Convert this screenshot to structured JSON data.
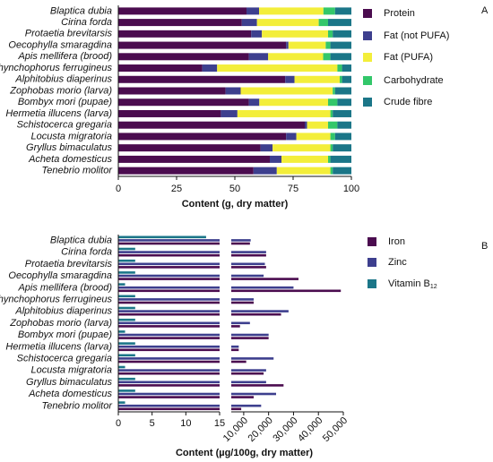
{
  "chart_data": [
    {
      "type": "bar",
      "orientation": "horizontal",
      "stacked": true,
      "panel": "A",
      "xlabel": "Content (g, dry matter)",
      "categories": [
        "Blaptica dubia",
        "Cirina forda",
        "Protaetia brevitarsis",
        "Oecophylla smaragdina",
        "Apis mellifera (brood)",
        "Rhynchophorus ferrugineus",
        "Alphitobius diaperinus",
        "Zophobas morio (larva)",
        "Bombyx mori (pupae)",
        "Hermetia illucens (larva)",
        "Schistocerca gregaria",
        "Locusta migratoria",
        "Gryllus bimaculatus",
        "Acheta domesticus",
        "Tenebrio molitor"
      ],
      "series": [
        {
          "name": "Protein",
          "color": "#4b0c4f",
          "values": [
            55,
            53,
            57,
            72,
            56,
            36,
            71.6,
            46,
            56,
            44,
            80,
            72,
            61,
            65,
            58
          ]
        },
        {
          "name": "Fat (not PUFA)",
          "color": "#3d3f8e",
          "values": [
            5.4,
            6.5,
            4.6,
            1,
            8.3,
            6.4,
            4,
            6.5,
            4.5,
            7.1,
            1,
            4.4,
            5.2,
            5,
            10
          ]
        },
        {
          "name": "Fat (PUFA)",
          "color": "#f3ee3a",
          "values": [
            27.6,
            26.5,
            28.4,
            16,
            23.6,
            51.6,
            19.4,
            39.5,
            29.5,
            39.9,
            9,
            14.6,
            24.8,
            20,
            23
          ]
        },
        {
          "name": "Carbohydrate",
          "color": "#33c76a",
          "values": [
            5,
            4,
            2,
            2,
            3.1,
            2,
            1,
            1,
            4,
            1,
            4,
            2,
            1,
            1,
            1
          ]
        },
        {
          "name": "Crude fibre",
          "color": "#1b7688",
          "values": [
            7,
            10,
            8,
            9,
            9,
            4,
            4,
            7,
            6,
            8,
            6,
            7,
            8,
            9,
            8
          ]
        }
      ],
      "xlim": [
        0,
        100
      ],
      "xticks": [
        0,
        25,
        50,
        75,
        100
      ]
    },
    {
      "type": "bar",
      "orientation": "horizontal",
      "stacked": false,
      "panel": "B",
      "xlabel": "Content (µg/100g, dry matter)",
      "categories": [
        "Blaptica dubia",
        "Cirina forda",
        "Protaetia brevitarsis",
        "Oecophylla smaragdina",
        "Apis mellifera (brood)",
        "Rhynchophorus ferrugineus",
        "Alphitobius diaperinus",
        "Zophobas morio (larva)",
        "Bombyx mori (pupae)",
        "Hermetia illucens (larva)",
        "Schistocerca gregaria",
        "Locusta migratoria",
        "Gryllus bimaculatus",
        "Acheta domesticus",
        "Tenebrio molitor"
      ],
      "series": [
        {
          "name": "Iron",
          "color": "#4b0c4f",
          "values": [
            12500,
            19000,
            19000,
            32000,
            49000,
            14000,
            25000,
            8500,
            20000,
            8000,
            11000,
            18000,
            26000,
            14000,
            9000
          ]
        },
        {
          "name": "Zinc",
          "color": "#3d3f8e",
          "values": [
            12800,
            19000,
            18500,
            18000,
            30000,
            14000,
            28000,
            12500,
            20000,
            8000,
            22000,
            19000,
            19000,
            23000,
            17000
          ]
        },
        {
          "name": "Vitamin B12",
          "color": "#1b7688",
          "values": [
            13,
            2.5,
            2.5,
            2.5,
            1,
            2.5,
            2.5,
            2.5,
            1,
            2.5,
            2.5,
            1,
            2.5,
            2.5,
            1
          ]
        }
      ],
      "x_segments": [
        [
          0,
          15
        ],
        [
          5000,
          50000
        ]
      ],
      "xticks": [
        0,
        5,
        10,
        15,
        {
          "value": 10000,
          "label": "10,000"
        },
        {
          "value": 20000,
          "label": "20,000"
        },
        {
          "value": 30000,
          "label": "30,000"
        },
        {
          "value": 40000,
          "label": "40,000"
        },
        {
          "value": 50000,
          "label": "50,000"
        }
      ]
    }
  ]
}
